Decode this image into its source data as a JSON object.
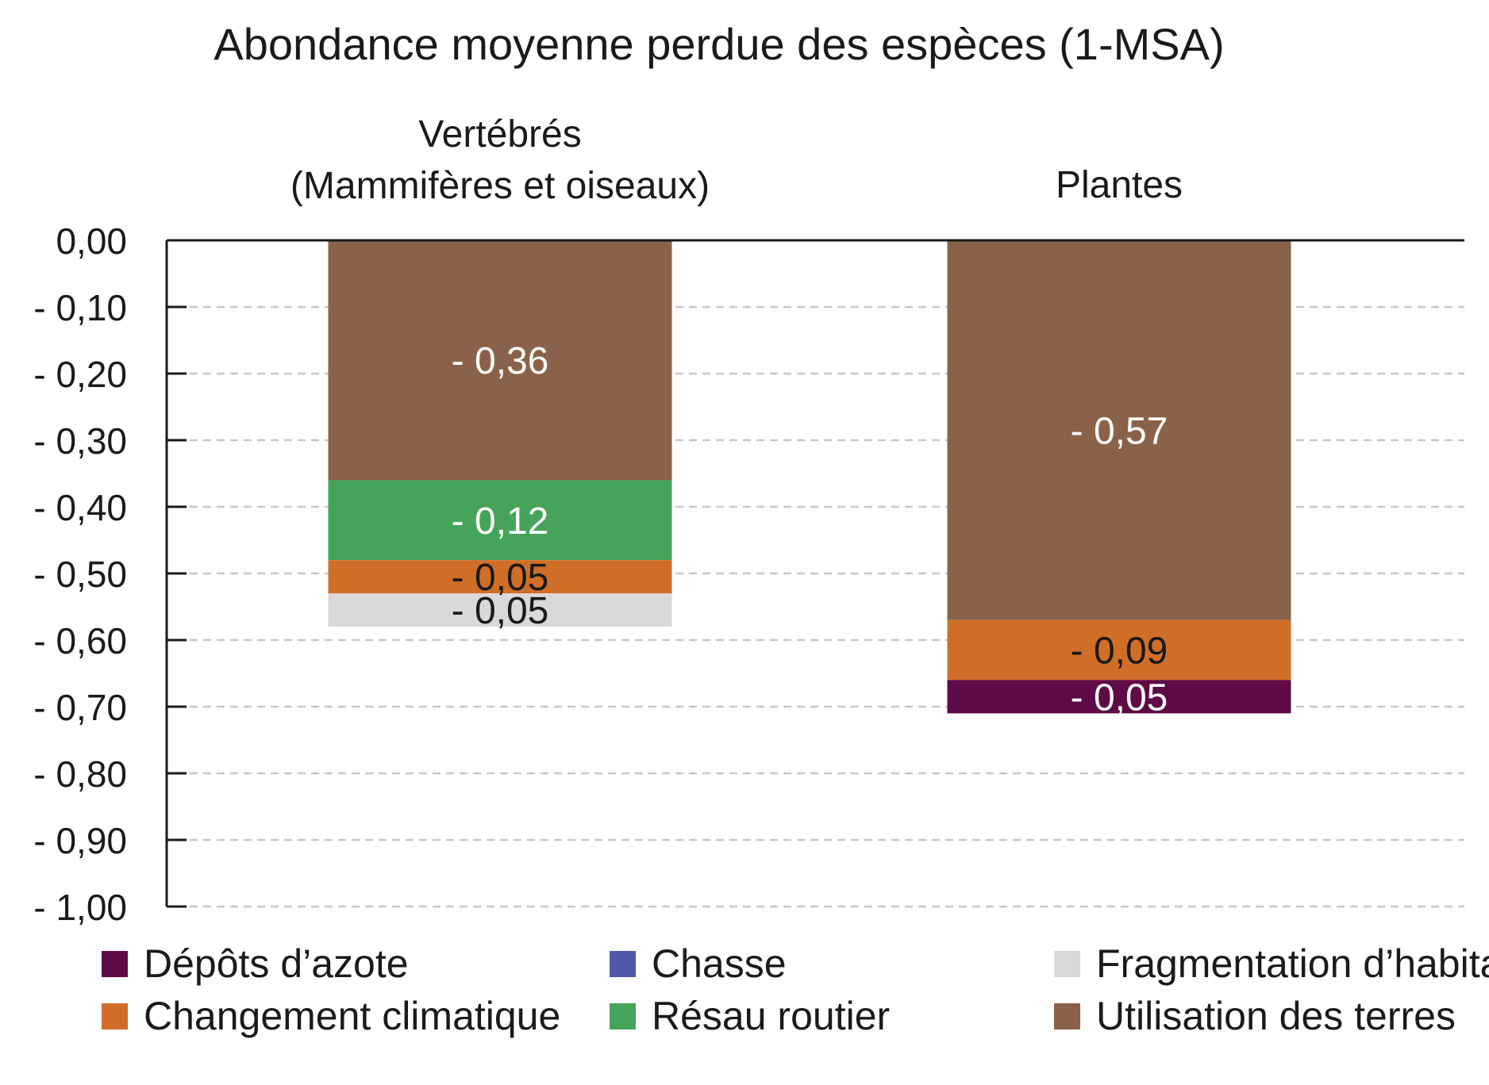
{
  "chart_data": {
    "type": "bar",
    "stacked": true,
    "direction": "downward",
    "title": "Abondance moyenne perdue des espèces (1-MSA)",
    "ylim": [
      -1.0,
      0.0
    ],
    "grid": true,
    "legend_position": "bottom",
    "yticks": [
      {
        "value": 0.0,
        "label": "0,00"
      },
      {
        "value": -0.1,
        "label": "- 0,10"
      },
      {
        "value": -0.2,
        "label": "- 0,20"
      },
      {
        "value": -0.3,
        "label": "- 0,30"
      },
      {
        "value": -0.4,
        "label": "- 0,40"
      },
      {
        "value": -0.5,
        "label": "- 0,50"
      },
      {
        "value": -0.6,
        "label": "- 0,60"
      },
      {
        "value": -0.7,
        "label": "- 0,70"
      },
      {
        "value": -0.8,
        "label": "- 0,80"
      },
      {
        "value": -0.9,
        "label": "- 0,90"
      },
      {
        "value": -1.0,
        "label": "- 1,00"
      }
    ],
    "categories": [
      {
        "label_lines": [
          "Vertébrés",
          "(Mammifères et oiseaux)"
        ]
      },
      {
        "label_lines": [
          "Plantes"
        ]
      }
    ],
    "series": [
      {
        "name": "Utilisation des terres",
        "color": "#8a6249",
        "values": [
          -0.36,
          -0.57
        ],
        "labels": [
          "- 0,36",
          "- 0,57"
        ],
        "label_color": "#ffffff"
      },
      {
        "name": "Résau routier",
        "color": "#45a45a",
        "values": [
          -0.12,
          0
        ],
        "labels": [
          "- 0,12",
          ""
        ],
        "label_color": "#ffffff"
      },
      {
        "name": "Changement climatique",
        "color": "#d06e27",
        "values": [
          -0.05,
          -0.09
        ],
        "labels": [
          "- 0,05",
          "- 0,09"
        ],
        "label_color": "#1a1a1a"
      },
      {
        "name": "Fragmentation d’habitats",
        "color": "#d9d9d9",
        "values": [
          -0.05,
          0
        ],
        "labels": [
          "- 0,05",
          ""
        ],
        "label_color": "#1a1a1a"
      },
      {
        "name": "Dépôts d’azote",
        "color": "#5e0a47",
        "values": [
          0,
          -0.05
        ],
        "labels": [
          "",
          "- 0,05"
        ],
        "label_color": "#ffffff"
      },
      {
        "name": "Chasse",
        "color": "#4f57a8",
        "values": [
          0,
          0
        ],
        "labels": [
          "",
          ""
        ],
        "label_color": "#ffffff"
      }
    ],
    "legend": [
      {
        "name": "Dépôts d’azote",
        "color": "#5e0a47"
      },
      {
        "name": "Chasse",
        "color": "#4f57a8"
      },
      {
        "name": "Fragmentation d’habitats",
        "color": "#d9d9d9"
      },
      {
        "name": "Changement climatique",
        "color": "#d06e27"
      },
      {
        "name": "Résau routier",
        "color": "#45a45a"
      },
      {
        "name": "Utilisation des terres",
        "color": "#8a6249"
      }
    ]
  }
}
